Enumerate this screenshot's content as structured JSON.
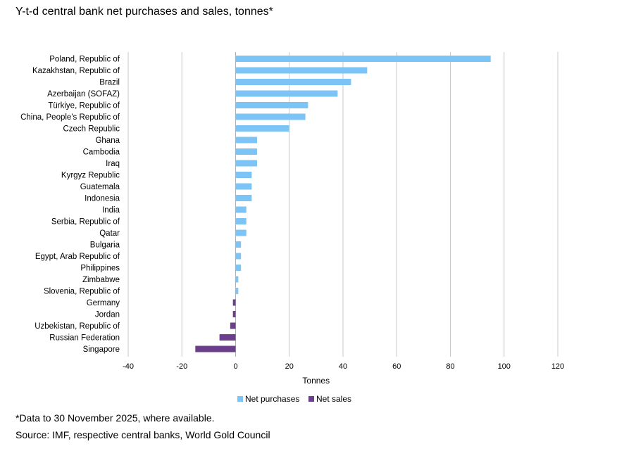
{
  "title": "Y-t-d central bank net purchases and sales, tonnes*",
  "footnote": "*Data to 30 November 2025, where available.",
  "source": "Source: IMF, respective central banks, World Gold Council",
  "chart_data": {
    "type": "bar",
    "orientation": "horizontal",
    "title": "Y-t-d central bank net purchases and sales, tonnes*",
    "xlabel": "Tonnes",
    "ylabel": "",
    "xlim": [
      -40,
      120
    ],
    "xticks": [
      -40,
      -20,
      0,
      20,
      40,
      60,
      80,
      100,
      120
    ],
    "grid": "vertical",
    "legend_position": "bottom",
    "colors": {
      "purchases": "#7cc4f5",
      "sales": "#6b3f8c",
      "grid": "#c8c8c8"
    },
    "legend": [
      {
        "name": "Net purchases",
        "color": "#7cc4f5"
      },
      {
        "name": "Net sales",
        "color": "#6b3f8c"
      }
    ],
    "categories": [
      "Poland, Republic of",
      "Kazakhstan, Republic of",
      "Brazil",
      "Azerbaijan (SOFAZ)",
      "Türkiye, Republic of",
      "China, People's Republic of",
      "Czech Republic",
      "Ghana",
      "Cambodia",
      "Iraq",
      "Kyrgyz Republic",
      "Guatemala",
      "Indonesia",
      "India",
      "Serbia, Republic of",
      "Qatar",
      "Bulgaria",
      "Egypt, Arab Republic of",
      "Philippines",
      "Zimbabwe",
      "Slovenia, Republic of",
      "Germany",
      "Jordan",
      "Uzbekistan, Republic of",
      "Russian Federation",
      "Singapore"
    ],
    "values": [
      95,
      49,
      43,
      38,
      27,
      26,
      20,
      8,
      8,
      8,
      6,
      6,
      6,
      4,
      4,
      4,
      2,
      2,
      2,
      1,
      1,
      -1,
      -1,
      -2,
      -6,
      -15
    ]
  }
}
